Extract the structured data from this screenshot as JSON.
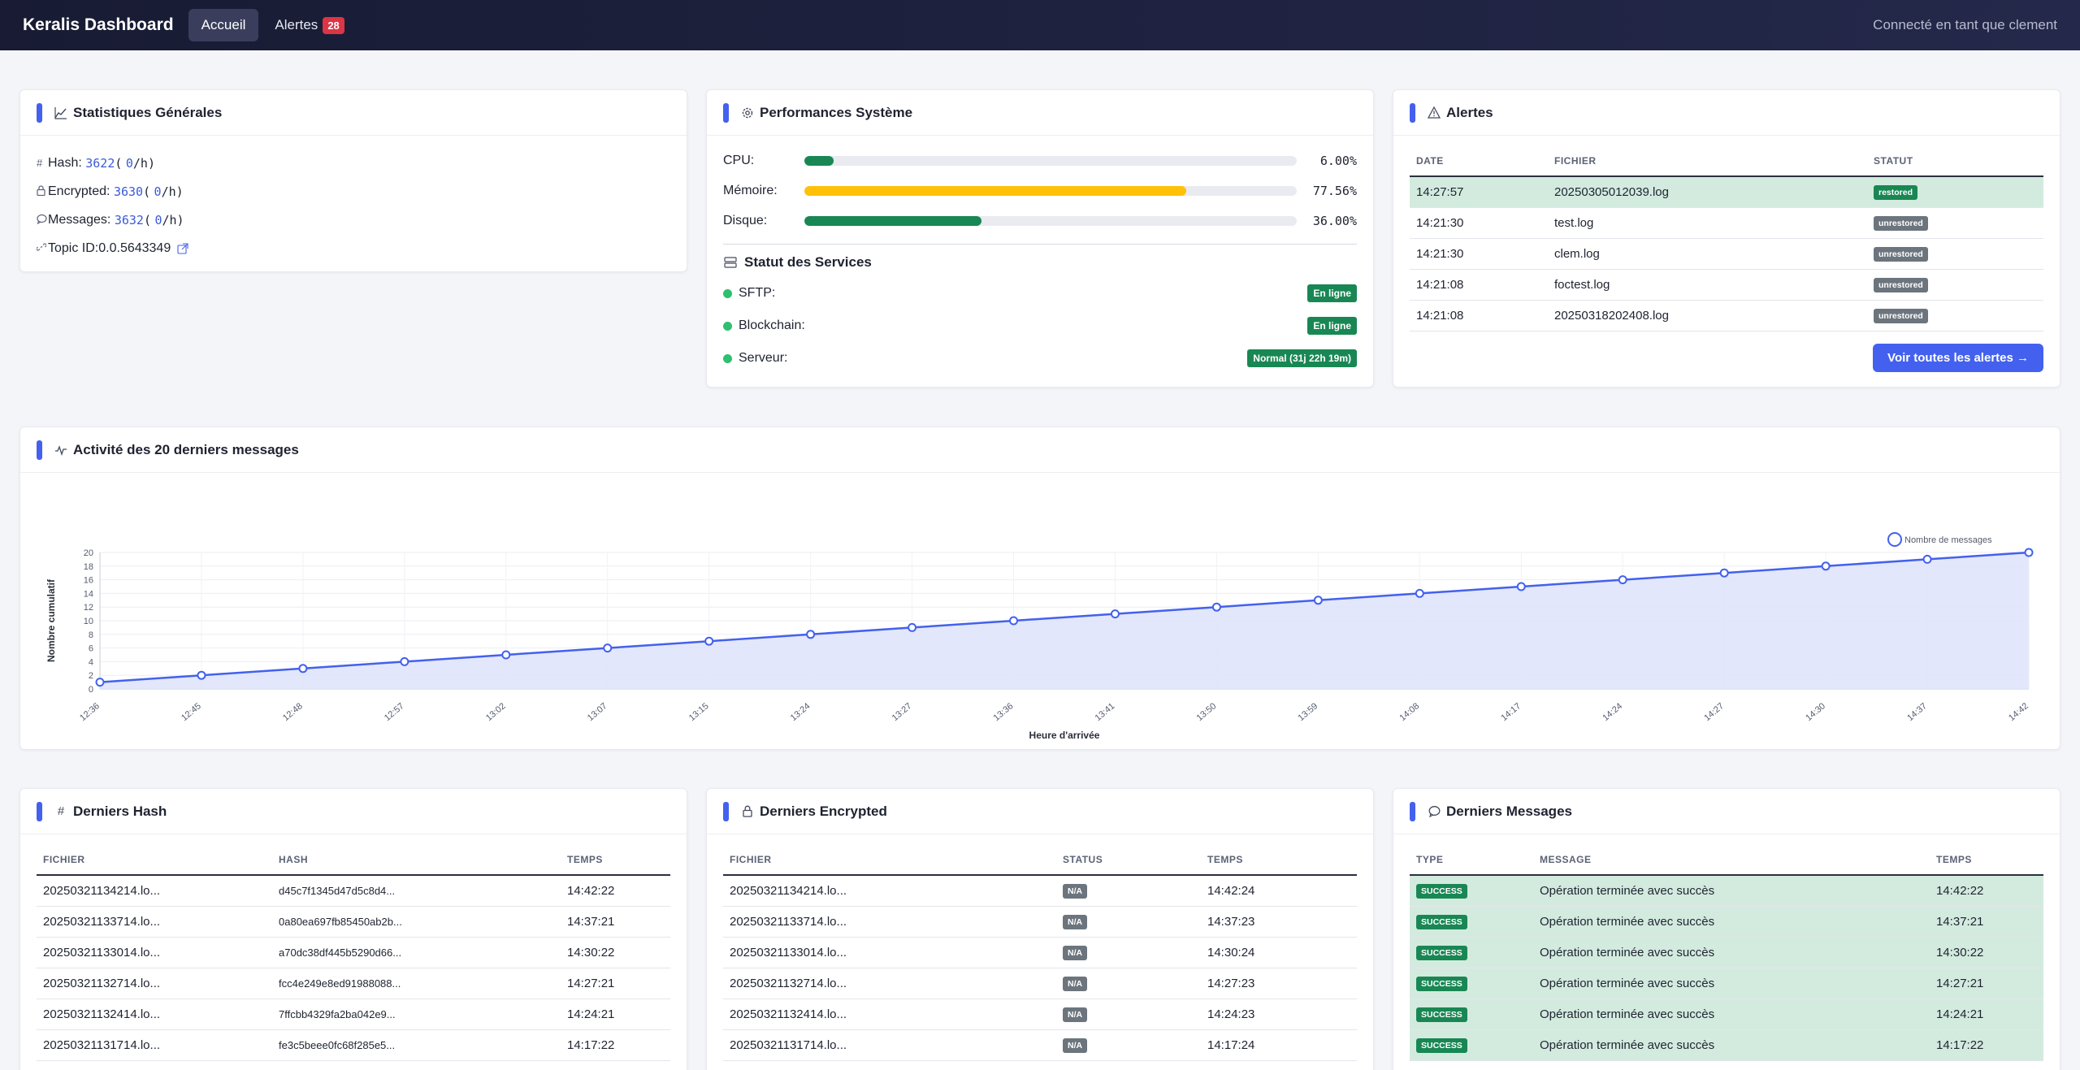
{
  "nav": {
    "brand": "Keralis Dashboard",
    "links": [
      {
        "label": "Accueil",
        "active": true
      },
      {
        "label": "Alertes",
        "badge": "28"
      }
    ],
    "user_text": "Connecté en tant que clement"
  },
  "stats": {
    "title": "Statistiques Générales",
    "hash_label": "Hash:",
    "hash_value": "3622",
    "hash_rate": "0",
    "encrypted_label": "Encrypted:",
    "encrypted_value": "3630",
    "encrypted_rate": "0",
    "messages_label": "Messages:",
    "messages_value": "3632",
    "messages_rate": "0",
    "topic_label": "Topic ID:",
    "topic_value": "0.0.5643349",
    "rate_prefix": "(",
    "rate_suffix": "/h)"
  },
  "performance": {
    "title": "Performances Système",
    "rows": [
      {
        "label": "CPU:",
        "percent": 6.0,
        "display": "6.00%",
        "color": "#198754"
      },
      {
        "label": "Mémoire:",
        "percent": 77.56,
        "display": "77.56%",
        "color": "#ffc107"
      },
      {
        "label": "Disque:",
        "percent": 36.0,
        "display": "36.00%",
        "color": "#198754"
      }
    ],
    "services_title": "Statut des Services",
    "services": [
      {
        "label": "SFTP:",
        "status": "En ligne"
      },
      {
        "label": "Blockchain:",
        "status": "En ligne"
      },
      {
        "label": "Serveur:",
        "status": "Normal (31j 22h 19m)"
      }
    ]
  },
  "alerts": {
    "title": "Alertes",
    "columns": [
      "DATE",
      "FICHIER",
      "STATUT"
    ],
    "rows": [
      {
        "date": "14:27:57",
        "file": "20250305012039.log",
        "status": "restored"
      },
      {
        "date": "14:21:30",
        "file": "test.log",
        "status": "unrestored"
      },
      {
        "date": "14:21:30",
        "file": "clem.log",
        "status": "unrestored"
      },
      {
        "date": "14:21:08",
        "file": "foctest.log",
        "status": "unrestored"
      },
      {
        "date": "14:21:08",
        "file": "20250318202408.log",
        "status": "unrestored"
      }
    ],
    "button_label": "Voir toutes les alertes →"
  },
  "activity": {
    "title": "Activité des 20 derniers messages"
  },
  "chart_data": {
    "type": "line",
    "title": "",
    "xlabel": "Heure d'arrivée",
    "ylabel": "Nombre cumulatif",
    "categories": [
      "12:36",
      "12:45",
      "12:48",
      "12:57",
      "13:02",
      "13:07",
      "13:15",
      "13:24",
      "13:27",
      "13:36",
      "13:41",
      "13:50",
      "13:59",
      "14:08",
      "14:17",
      "14:24",
      "14:27",
      "14:30",
      "14:37",
      "14:42"
    ],
    "series": [
      {
        "name": "Nombre de messages",
        "values": [
          1,
          2,
          3,
          4,
          5,
          6,
          7,
          8,
          9,
          10,
          11,
          12,
          13,
          14,
          15,
          16,
          17,
          18,
          19,
          20
        ],
        "color": "#4361ee",
        "fill": "#e0e4fb"
      }
    ],
    "yticks": [
      0,
      2,
      4,
      6,
      8,
      10,
      12,
      14,
      16,
      18,
      20
    ],
    "ylim": [
      0,
      20
    ],
    "legend_position": "top-right",
    "grid": true
  },
  "hash_table": {
    "title": "Derniers Hash",
    "columns": [
      "FICHIER",
      "HASH",
      "TEMPS"
    ],
    "rows": [
      {
        "file": "20250321134214.lo...",
        "hash": "d45c7f1345d47d5c8d4...",
        "time": "14:42:22"
      },
      {
        "file": "20250321133714.lo...",
        "hash": "0a80ea697fb85450ab2b...",
        "time": "14:37:21"
      },
      {
        "file": "20250321133014.lo...",
        "hash": "a70dc38df445b5290d66...",
        "time": "14:30:22"
      },
      {
        "file": "20250321132714.lo...",
        "hash": "fcc4e249e8ed91988088...",
        "time": "14:27:21"
      },
      {
        "file": "20250321132414.lo...",
        "hash": "7ffcbb4329fa2ba042e9...",
        "time": "14:24:21"
      },
      {
        "file": "20250321131714.lo...",
        "hash": "fe3c5beee0fc68f285e5...",
        "time": "14:17:22"
      }
    ]
  },
  "encrypted_table": {
    "title": "Derniers Encrypted",
    "columns": [
      "FICHIER",
      "STATUS",
      "TEMPS"
    ],
    "rows": [
      {
        "file": "20250321134214.lo...",
        "status": "N/A",
        "time": "14:42:24"
      },
      {
        "file": "20250321133714.lo...",
        "status": "N/A",
        "time": "14:37:23"
      },
      {
        "file": "20250321133014.lo...",
        "status": "N/A",
        "time": "14:30:24"
      },
      {
        "file": "20250321132714.lo...",
        "status": "N/A",
        "time": "14:27:23"
      },
      {
        "file": "20250321132414.lo...",
        "status": "N/A",
        "time": "14:24:23"
      },
      {
        "file": "20250321131714.lo...",
        "status": "N/A",
        "time": "14:17:24"
      }
    ]
  },
  "messages_table": {
    "title": "Derniers Messages",
    "columns": [
      "TYPE",
      "MESSAGE",
      "TEMPS"
    ],
    "rows": [
      {
        "type": "SUCCESS",
        "message": "Opération terminée avec succès",
        "time": "14:42:22"
      },
      {
        "type": "SUCCESS",
        "message": "Opération terminée avec succès",
        "time": "14:37:21"
      },
      {
        "type": "SUCCESS",
        "message": "Opération terminée avec succès",
        "time": "14:30:22"
      },
      {
        "type": "SUCCESS",
        "message": "Opération terminée avec succès",
        "time": "14:27:21"
      },
      {
        "type": "SUCCESS",
        "message": "Opération terminée avec succès",
        "time": "14:24:21"
      },
      {
        "type": "SUCCESS",
        "message": "Opération terminée avec succès",
        "time": "14:17:22"
      }
    ]
  }
}
